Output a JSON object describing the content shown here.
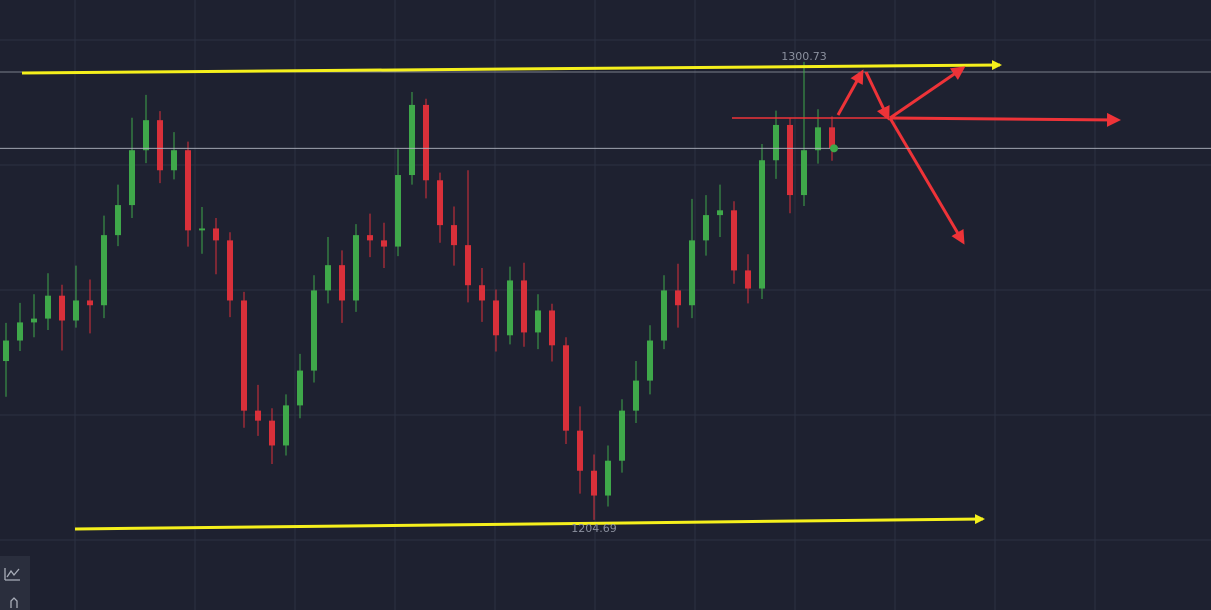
{
  "chart_data": {
    "type": "candlestick",
    "ylim": [
      1185.8,
      1313.7
    ],
    "up_color": "#3fa84a",
    "down_color": "#d9303a",
    "open": [
      1238.0,
      1242.3,
      1246.1,
      1246.9,
      1251.7,
      1246.5,
      1250.7,
      1249.7,
      1264.4,
      1270.7,
      1282.2,
      1288.5,
      1278.0,
      1282.2,
      1265.4,
      1265.8,
      1263.3,
      1250.7,
      1227.6,
      1225.5,
      1220.3,
      1228.7,
      1236.0,
      1252.8,
      1258.1,
      1250.7,
      1264.4,
      1263.3,
      1262.0,
      1277.0,
      1291.7,
      1275.9,
      1266.5,
      1262.3,
      1253.9,
      1250.7,
      1243.4,
      1254.9,
      1244.0,
      1248.6,
      1241.3,
      1223.4,
      1215.0,
      1209.8,
      1217.1,
      1227.6,
      1233.9,
      1242.3,
      1252.8,
      1249.7,
      1263.3,
      1268.6,
      1269.6,
      1257.0,
      1253.2,
      1280.1,
      1287.5,
      1272.8,
      1282.2,
      1287.0
    ],
    "high": [
      1246.0,
      1250.2,
      1252.0,
      1256.4,
      1254.0,
      1258.0,
      1255.1,
      1268.5,
      1275.0,
      1289.0,
      1293.8,
      1290.4,
      1286.0,
      1284.0,
      1270.3,
      1268.0,
      1265.0,
      1252.5,
      1233.0,
      1228.1,
      1231.0,
      1239.5,
      1256.0,
      1264.0,
      1261.2,
      1266.7,
      1268.9,
      1267.0,
      1282.4,
      1294.4,
      1293.0,
      1277.5,
      1270.4,
      1278.0,
      1257.5,
      1253.0,
      1257.8,
      1258.6,
      1252.0,
      1250.0,
      1243.0,
      1228.5,
      1218.4,
      1220.3,
      1230.0,
      1238.0,
      1245.5,
      1256.0,
      1258.4,
      1272.0,
      1272.8,
      1275.0,
      1271.5,
      1260.4,
      1283.5,
      1290.5,
      1289.0,
      1300.73,
      1290.8,
      1289.3
    ],
    "low": [
      1230.5,
      1240.1,
      1243.0,
      1244.5,
      1240.2,
      1245.0,
      1243.8,
      1247.0,
      1262.1,
      1268.0,
      1279.5,
      1275.3,
      1276.1,
      1262.0,
      1260.5,
      1256.2,
      1247.2,
      1224.0,
      1222.3,
      1216.4,
      1218.2,
      1226.0,
      1233.5,
      1250.1,
      1246.0,
      1248.3,
      1259.8,
      1257.5,
      1260.0,
      1275.0,
      1272.1,
      1262.8,
      1258.0,
      1250.3,
      1246.2,
      1240.0,
      1241.5,
      1241.0,
      1240.5,
      1237.9,
      1220.6,
      1210.2,
      1204.69,
      1207.5,
      1214.6,
      1225.0,
      1231.0,
      1240.5,
      1245.0,
      1247.0,
      1260.1,
      1264.0,
      1254.2,
      1250.1,
      1251.0,
      1276.2,
      1269.0,
      1270.5,
      1279.4,
      1280.0
    ],
    "close": [
      1242.3,
      1246.1,
      1246.9,
      1251.7,
      1246.5,
      1250.7,
      1249.7,
      1264.4,
      1270.7,
      1282.2,
      1288.5,
      1278.0,
      1282.2,
      1265.4,
      1265.8,
      1263.3,
      1250.7,
      1227.6,
      1225.5,
      1220.3,
      1228.7,
      1236.0,
      1252.8,
      1258.1,
      1250.7,
      1264.4,
      1263.3,
      1262.0,
      1277.0,
      1291.7,
      1275.9,
      1266.5,
      1262.3,
      1253.9,
      1250.7,
      1243.4,
      1254.9,
      1244.0,
      1248.6,
      1241.3,
      1223.4,
      1215.0,
      1209.8,
      1217.1,
      1227.6,
      1233.9,
      1242.3,
      1252.8,
      1249.7,
      1263.3,
      1268.6,
      1269.6,
      1257.0,
      1253.2,
      1280.1,
      1287.5,
      1272.8,
      1282.2,
      1287.0,
      1282.6
    ],
    "max_label": 1300.73,
    "min_label": 1204.69
  }
}
